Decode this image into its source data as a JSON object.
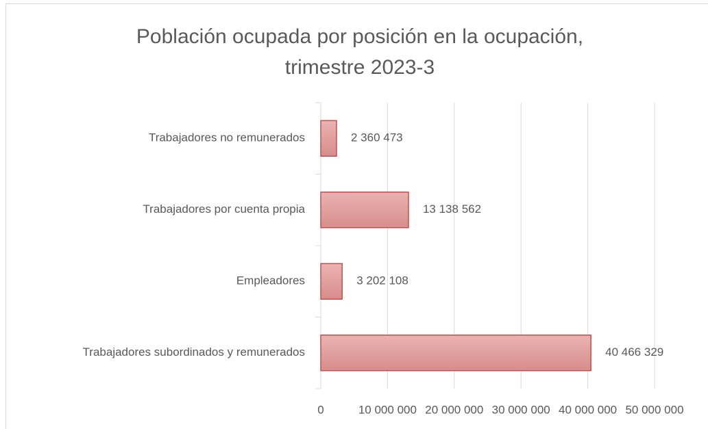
{
  "chart_data": {
    "type": "barh",
    "title": "Población ocupada por posición en la ocupación,",
    "subtitle": "trimestre 2023-3",
    "categories": [
      "Trabajadores no remunerados",
      "Trabajadores por cuenta propia",
      "Empleadores",
      "Trabajadores subordinados y remunerados"
    ],
    "values": [
      2360473,
      13138562,
      3202108,
      40466329
    ],
    "value_labels": [
      "2 360 473",
      "13 138 562",
      "3 202 108",
      "40 466 329"
    ],
    "color": "#c0504d",
    "xlim": [
      0,
      50000000
    ],
    "xticks": [
      0,
      {
        "value": 10000000,
        "label": "10 000 000"
      },
      {
        "value": 20000000,
        "label": "20 000 000"
      },
      {
        "value": 30000000,
        "label": "30 000 000"
      },
      {
        "value": 40000000,
        "label": "40 000 000"
      },
      {
        "value": 50000000,
        "label": "50 000 000"
      }
    ],
    "grid": true
  }
}
